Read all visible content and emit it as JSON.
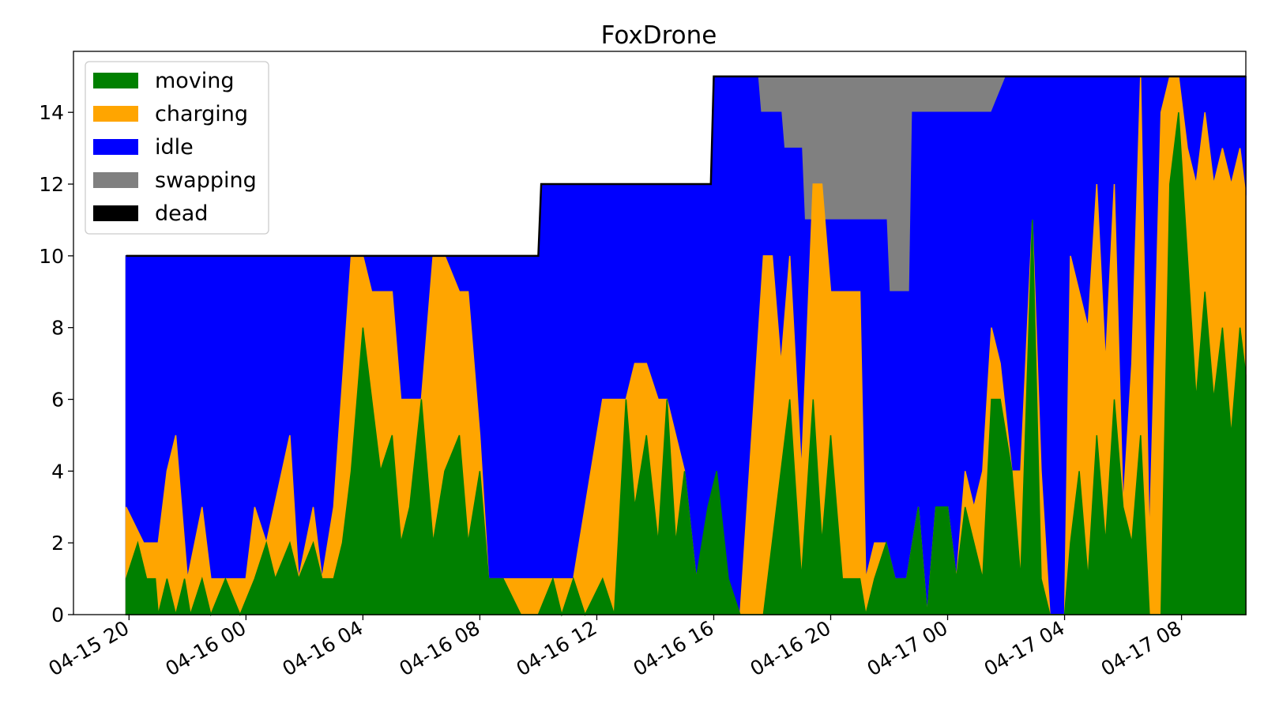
{
  "chart_data": {
    "type": "area",
    "title": "FoxDrone",
    "xlabel": "",
    "ylabel": "",
    "stacked": true,
    "x_tick_labels": [
      "04-15 20",
      "04-16 00",
      "04-16 04",
      "04-16 08",
      "04-16 12",
      "04-16 16",
      "04-16 20",
      "04-17 00",
      "04-17 04",
      "04-17 08"
    ],
    "y_ticks": [
      0,
      2,
      4,
      6,
      8,
      10,
      12,
      14
    ],
    "ylim": [
      0,
      15.7
    ],
    "xlim_hours": [
      -1.9,
      38.2
    ],
    "x_unit": "hours since 04-15 20:00",
    "legend_position": "top-left",
    "grid": false,
    "series": [
      {
        "name": "moving",
        "color": "#008000",
        "points": [
          [
            -0.1,
            1
          ],
          [
            0.3,
            2
          ],
          [
            0.6,
            1
          ],
          [
            0.9,
            1
          ],
          [
            1.0,
            0
          ],
          [
            1.3,
            1
          ],
          [
            1.6,
            0
          ],
          [
            1.9,
            1
          ],
          [
            2.1,
            0
          ],
          [
            2.5,
            1
          ],
          [
            2.8,
            0
          ],
          [
            3.3,
            1
          ],
          [
            3.8,
            0
          ],
          [
            4.3,
            1
          ],
          [
            4.7,
            2
          ],
          [
            5.0,
            1
          ],
          [
            5.5,
            2
          ],
          [
            5.8,
            1
          ],
          [
            6.3,
            2
          ],
          [
            6.6,
            1
          ],
          [
            7.0,
            1
          ],
          [
            7.3,
            2
          ],
          [
            7.6,
            4
          ],
          [
            8.0,
            8
          ],
          [
            8.3,
            6
          ],
          [
            8.6,
            4
          ],
          [
            9.0,
            5
          ],
          [
            9.3,
            2
          ],
          [
            9.6,
            3
          ],
          [
            10.0,
            6
          ],
          [
            10.4,
            2
          ],
          [
            10.8,
            4
          ],
          [
            11.3,
            5
          ],
          [
            11.6,
            2
          ],
          [
            12.0,
            4
          ],
          [
            12.3,
            1
          ],
          [
            12.8,
            1
          ],
          [
            13.4,
            0
          ],
          [
            14.0,
            0
          ],
          [
            14.5,
            1
          ],
          [
            14.8,
            0
          ],
          [
            15.2,
            1
          ],
          [
            15.6,
            0
          ],
          [
            16.2,
            1
          ],
          [
            16.6,
            0
          ],
          [
            17.0,
            6
          ],
          [
            17.3,
            3
          ],
          [
            17.7,
            5
          ],
          [
            18.1,
            2
          ],
          [
            18.4,
            6
          ],
          [
            18.7,
            2
          ],
          [
            19.0,
            4
          ],
          [
            19.4,
            1
          ],
          [
            19.8,
            3
          ],
          [
            20.1,
            4
          ],
          [
            20.5,
            1
          ],
          [
            20.9,
            0
          ],
          [
            21.7,
            0
          ],
          [
            22.0,
            2
          ],
          [
            22.3,
            4
          ],
          [
            22.6,
            6
          ],
          [
            23.0,
            1
          ],
          [
            23.4,
            6
          ],
          [
            23.7,
            2
          ],
          [
            24.0,
            5
          ],
          [
            24.4,
            1
          ],
          [
            25.0,
            1
          ],
          [
            25.2,
            0
          ],
          [
            25.5,
            1
          ],
          [
            25.9,
            2
          ],
          [
            26.2,
            1
          ],
          [
            26.6,
            1
          ],
          [
            27.0,
            3
          ],
          [
            27.3,
            0
          ],
          [
            27.6,
            3
          ],
          [
            28.0,
            3
          ],
          [
            28.3,
            1
          ],
          [
            28.6,
            3
          ],
          [
            28.9,
            2
          ],
          [
            29.2,
            1
          ],
          [
            29.5,
            6
          ],
          [
            29.8,
            6
          ],
          [
            30.2,
            4
          ],
          [
            30.5,
            1
          ],
          [
            30.9,
            11
          ],
          [
            31.2,
            1
          ],
          [
            31.5,
            0
          ],
          [
            32.0,
            0
          ],
          [
            32.2,
            2
          ],
          [
            32.5,
            4
          ],
          [
            32.8,
            1
          ],
          [
            33.1,
            5
          ],
          [
            33.4,
            2
          ],
          [
            33.7,
            6
          ],
          [
            34.0,
            3
          ],
          [
            34.3,
            2
          ],
          [
            34.6,
            5
          ],
          [
            34.9,
            0
          ],
          [
            35.3,
            0
          ],
          [
            35.6,
            12
          ],
          [
            35.9,
            14
          ],
          [
            36.2,
            10
          ],
          [
            36.5,
            6
          ],
          [
            36.8,
            9
          ],
          [
            37.1,
            6
          ],
          [
            37.4,
            8
          ],
          [
            37.7,
            5
          ],
          [
            38.0,
            8
          ],
          [
            38.3,
            6
          ],
          [
            38.6,
            9
          ],
          [
            38.9,
            6
          ],
          [
            39.2,
            8
          ],
          [
            39.5,
            5
          ],
          [
            39.8,
            9
          ],
          [
            40.1,
            6
          ],
          [
            40.4,
            8
          ],
          [
            40.7,
            5
          ],
          [
            41.0,
            8
          ],
          [
            41.3,
            6
          ],
          [
            41.6,
            9
          ],
          [
            41.9,
            5
          ],
          [
            42.2,
            8
          ],
          [
            42.5,
            6
          ],
          [
            42.8,
            9
          ],
          [
            43.1,
            6
          ],
          [
            43.4,
            8
          ],
          [
            43.7,
            4
          ],
          [
            44.0,
            9
          ],
          [
            44.3,
            6
          ],
          [
            44.6,
            8
          ],
          [
            44.9,
            4
          ],
          [
            45.2,
            9
          ],
          [
            45.5,
            3
          ],
          [
            45.8,
            9
          ],
          [
            46.1,
            7
          ],
          [
            46.4,
            8
          ]
        ]
      },
      {
        "name": "charging",
        "color": "#FFA500",
        "points": [
          [
            -0.1,
            3
          ],
          [
            0.5,
            2
          ],
          [
            1.0,
            2
          ],
          [
            1.3,
            4
          ],
          [
            1.6,
            5
          ],
          [
            2.0,
            1
          ],
          [
            2.5,
            3
          ],
          [
            2.8,
            1
          ],
          [
            3.3,
            1
          ],
          [
            4.0,
            1
          ],
          [
            4.3,
            3
          ],
          [
            4.7,
            2
          ],
          [
            5.5,
            5
          ],
          [
            5.8,
            1
          ],
          [
            6.3,
            3
          ],
          [
            6.6,
            1
          ],
          [
            7.0,
            3
          ],
          [
            7.6,
            10
          ],
          [
            8.0,
            10
          ],
          [
            8.3,
            9
          ],
          [
            8.6,
            9
          ],
          [
            9.0,
            9
          ],
          [
            9.3,
            6
          ],
          [
            9.6,
            6
          ],
          [
            10.0,
            6
          ],
          [
            10.4,
            10
          ],
          [
            10.8,
            10
          ],
          [
            11.3,
            9
          ],
          [
            11.6,
            9
          ],
          [
            12.0,
            5
          ],
          [
            12.3,
            1
          ],
          [
            12.8,
            1
          ],
          [
            13.4,
            1
          ],
          [
            14.0,
            1
          ],
          [
            14.5,
            1
          ],
          [
            15.2,
            1
          ],
          [
            16.2,
            6
          ],
          [
            16.6,
            6
          ],
          [
            17.0,
            6
          ],
          [
            17.3,
            7
          ],
          [
            17.7,
            7
          ],
          [
            18.1,
            6
          ],
          [
            18.4,
            6
          ],
          [
            18.7,
            5
          ],
          [
            19.0,
            4
          ],
          [
            19.4,
            1
          ],
          [
            19.8,
            1
          ],
          [
            20.1,
            1
          ],
          [
            20.5,
            0
          ],
          [
            20.9,
            0
          ],
          [
            21.7,
            10
          ],
          [
            22.0,
            10
          ],
          [
            22.3,
            7
          ],
          [
            22.6,
            10
          ],
          [
            23.0,
            4
          ],
          [
            23.4,
            12
          ],
          [
            23.7,
            12
          ],
          [
            24.0,
            9
          ],
          [
            24.4,
            9
          ],
          [
            25.0,
            9
          ],
          [
            25.2,
            1
          ],
          [
            25.5,
            2
          ],
          [
            25.9,
            2
          ],
          [
            26.2,
            1
          ],
          [
            26.6,
            1
          ],
          [
            27.0,
            3
          ],
          [
            27.3,
            0
          ],
          [
            27.6,
            3
          ],
          [
            28.0,
            3
          ],
          [
            28.3,
            1
          ],
          [
            28.6,
            4
          ],
          [
            28.9,
            3
          ],
          [
            29.2,
            4
          ],
          [
            29.5,
            8
          ],
          [
            29.8,
            7
          ],
          [
            30.2,
            4
          ],
          [
            30.5,
            4
          ],
          [
            30.9,
            11
          ],
          [
            31.2,
            4
          ],
          [
            31.5,
            0
          ],
          [
            32.0,
            0
          ],
          [
            32.2,
            10
          ],
          [
            32.5,
            9
          ],
          [
            32.8,
            8
          ],
          [
            33.1,
            12
          ],
          [
            33.4,
            7
          ],
          [
            33.7,
            12
          ],
          [
            34.0,
            3
          ],
          [
            34.3,
            7
          ],
          [
            34.6,
            15
          ],
          [
            34.9,
            2
          ],
          [
            35.3,
            14
          ],
          [
            35.6,
            15
          ],
          [
            35.9,
            15
          ],
          [
            36.2,
            13
          ],
          [
            36.5,
            12
          ],
          [
            36.8,
            14
          ],
          [
            37.1,
            12
          ],
          [
            37.4,
            13
          ],
          [
            37.7,
            12
          ],
          [
            38.0,
            13
          ],
          [
            38.3,
            11
          ],
          [
            38.6,
            14
          ],
          [
            38.9,
            12
          ],
          [
            39.2,
            13
          ],
          [
            39.5,
            11
          ],
          [
            39.8,
            13
          ],
          [
            40.1,
            11
          ],
          [
            40.4,
            13
          ],
          [
            40.7,
            11
          ],
          [
            41.0,
            13
          ],
          [
            41.3,
            11
          ],
          [
            41.6,
            13
          ],
          [
            41.9,
            10
          ],
          [
            42.2,
            12
          ],
          [
            42.5,
            10
          ],
          [
            42.8,
            12
          ],
          [
            43.1,
            10
          ],
          [
            43.4,
            12
          ],
          [
            43.7,
            10
          ],
          [
            44.0,
            12
          ],
          [
            44.3,
            9
          ],
          [
            44.6,
            11
          ],
          [
            44.9,
            9
          ],
          [
            45.2,
            12
          ],
          [
            45.5,
            9
          ],
          [
            45.8,
            11
          ],
          [
            46.1,
            9
          ],
          [
            46.4,
            10
          ]
        ]
      },
      {
        "name": "idle",
        "color": "#0000FF",
        "points": [
          [
            -0.1,
            10
          ],
          [
            14.0,
            10
          ],
          [
            14.1,
            12
          ],
          [
            19.9,
            12
          ],
          [
            20.0,
            15
          ],
          [
            21.5,
            15
          ],
          [
            21.6,
            14
          ],
          [
            22.3,
            14
          ],
          [
            22.4,
            13
          ],
          [
            23.0,
            13
          ],
          [
            23.1,
            11
          ],
          [
            25.9,
            11
          ],
          [
            26.0,
            9
          ],
          [
            26.7,
            9
          ],
          [
            26.8,
            14
          ],
          [
            29.5,
            14
          ],
          [
            30.0,
            15
          ],
          [
            46.4,
            15
          ]
        ]
      },
      {
        "name": "swapping",
        "color": "#808080",
        "points": [
          [
            -0.1,
            10
          ],
          [
            14.0,
            10
          ],
          [
            14.1,
            12
          ],
          [
            19.9,
            12
          ],
          [
            20.0,
            15
          ],
          [
            21.5,
            15
          ],
          [
            21.6,
            15
          ],
          [
            22.3,
            15
          ],
          [
            22.4,
            15
          ],
          [
            23.0,
            15
          ],
          [
            23.1,
            15
          ],
          [
            25.9,
            15
          ],
          [
            26.0,
            15
          ],
          [
            26.7,
            15
          ],
          [
            26.8,
            15
          ],
          [
            46.4,
            15
          ]
        ]
      },
      {
        "name": "dead",
        "color": "#000000",
        "points": [
          [
            -0.1,
            10
          ],
          [
            14.0,
            10
          ],
          [
            14.1,
            12
          ],
          [
            19.9,
            12
          ],
          [
            20.0,
            15
          ],
          [
            46.4,
            15
          ]
        ]
      }
    ]
  }
}
